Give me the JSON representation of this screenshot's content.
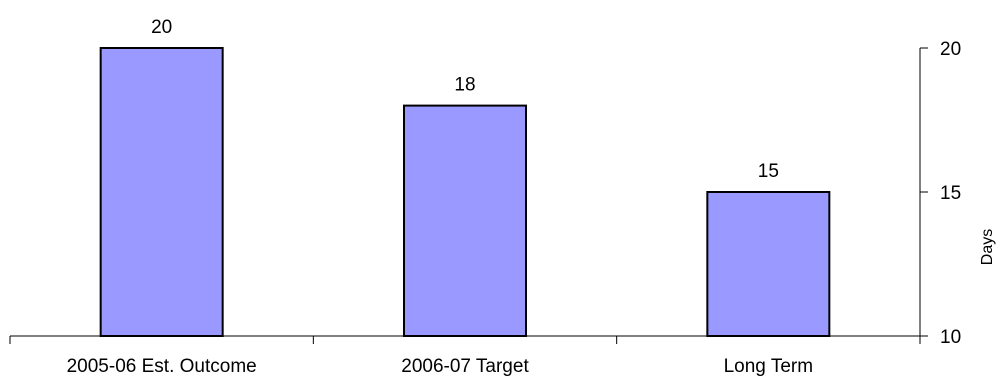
{
  "chart_data": {
    "type": "bar",
    "categories": [
      "2005-06 Est. Outcome",
      "2006-07 Target",
      "Long Term"
    ],
    "values": [
      20,
      18,
      15
    ],
    "data_labels": [
      "20",
      "18",
      "15"
    ],
    "title": "",
    "xlabel": "",
    "ylabel": "Days",
    "ylim": [
      10,
      20
    ],
    "yticks": [
      10,
      15,
      20
    ],
    "ytick_labels": [
      "10",
      "15",
      "20"
    ],
    "y_axis_side": "right",
    "grid": false,
    "legend": "none",
    "bar_color": "#9999ff",
    "bar_edge_color": "#000000"
  }
}
